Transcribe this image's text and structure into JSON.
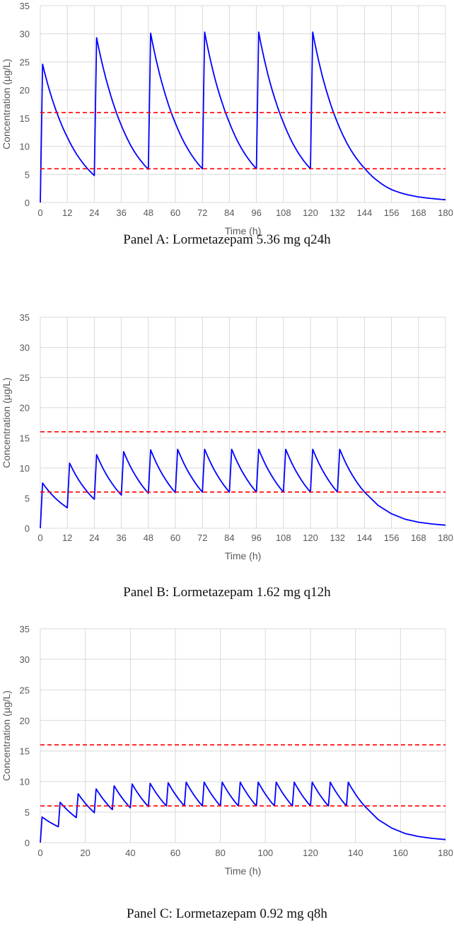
{
  "chart_data": [
    {
      "type": "line",
      "caption": "Panel A:  Lormetazepam 5.36 mg q24h",
      "xlabel": "Time (h)",
      "ylabel": "Concentration (µg/L)",
      "xlim": [
        0,
        180
      ],
      "ylim": [
        0,
        35
      ],
      "xticks": [
        0,
        12,
        24,
        36,
        48,
        60,
        72,
        84,
        96,
        108,
        120,
        132,
        144,
        156,
        168,
        180
      ],
      "yticks": [
        0,
        5,
        10,
        15,
        20,
        25,
        30,
        35
      ],
      "grid": true,
      "dose_interval_h": 24,
      "doses": 6,
      "series": [
        {
          "style": "solid",
          "color": "#0000ff",
          "x": [
            0,
            1,
            6,
            12,
            18,
            24,
            25,
            30,
            36,
            42,
            48,
            49,
            54,
            60,
            66,
            72,
            73,
            78,
            84,
            90,
            96,
            97,
            102,
            108,
            114,
            120,
            121,
            126,
            132,
            138,
            144,
            150,
            156,
            162,
            168,
            174,
            180
          ],
          "y": [
            0,
            24.6,
            17.5,
            11.6,
            7.5,
            4.8,
            29.3,
            20.8,
            13.7,
            8.9,
            5.9,
            30.1,
            21.3,
            14.1,
            9.2,
            6.0,
            30.3,
            21.4,
            14.2,
            9.2,
            6.0,
            30.3,
            21.4,
            14.2,
            9.2,
            6.0,
            30.3,
            21.4,
            14.2,
            9.3,
            6.1,
            3.8,
            2.3,
            1.5,
            1.0,
            0.7,
            0.5
          ]
        },
        {
          "style": "dashed",
          "color": "#ff0000",
          "x": [
            0,
            180
          ],
          "y": [
            16,
            16
          ]
        },
        {
          "style": "dashed",
          "color": "#ff0000",
          "x": [
            0,
            180
          ],
          "y": [
            6,
            6
          ]
        }
      ]
    },
    {
      "type": "line",
      "caption": "Panel B: Lormetazepam 1.62 mg q12h",
      "xlabel": "Time (h)",
      "ylabel": "Concentration (µg/L)",
      "xlim": [
        0,
        180
      ],
      "ylim": [
        0,
        35
      ],
      "xticks": [
        0,
        12,
        24,
        36,
        48,
        60,
        72,
        84,
        96,
        108,
        120,
        132,
        144,
        156,
        168,
        180
      ],
      "yticks": [
        0,
        5,
        10,
        15,
        20,
        25,
        30,
        35
      ],
      "grid": true,
      "dose_interval_h": 12,
      "doses": 12,
      "series": [
        {
          "style": "solid",
          "color": "#0000ff",
          "peaks": [
            7.5,
            10.8,
            12.2,
            12.7,
            13.0,
            13.1,
            13.1,
            13.1,
            13.1,
            13.1,
            13.1,
            13.1
          ],
          "troughs": [
            3.4,
            4.8,
            5.5,
            5.8,
            5.9,
            6.0,
            6.0,
            6.0,
            6.0,
            6.0,
            6.0,
            6.0
          ],
          "tail_x": [
            144,
            150,
            156,
            162,
            168,
            174,
            180
          ],
          "tail_y": [
            6.0,
            3.8,
            2.4,
            1.5,
            1.0,
            0.7,
            0.5
          ]
        },
        {
          "style": "dashed",
          "color": "#ff0000",
          "x": [
            0,
            180
          ],
          "y": [
            16,
            16
          ]
        },
        {
          "style": "dashed",
          "color": "#ff0000",
          "x": [
            0,
            180
          ],
          "y": [
            6,
            6
          ]
        }
      ]
    },
    {
      "type": "line",
      "caption": "Panel C: Lormetazepam 0.92 mg q8h",
      "xlabel": "Time (h)",
      "ylabel": "Concentration (µg/L)",
      "xlim": [
        0,
        180
      ],
      "ylim": [
        0,
        35
      ],
      "xticks": [
        0,
        20,
        40,
        60,
        80,
        100,
        120,
        140,
        160,
        180
      ],
      "yticks": [
        0,
        5,
        10,
        15,
        20,
        25,
        30,
        35
      ],
      "grid": true,
      "dose_interval_h": 8,
      "doses": 18,
      "series": [
        {
          "style": "solid",
          "color": "#0000ff",
          "peaks": [
            4.2,
            6.6,
            8.0,
            8.8,
            9.3,
            9.6,
            9.7,
            9.8,
            9.9,
            9.9,
            9.9,
            9.9,
            9.9,
            9.9,
            9.9,
            9.9,
            9.9,
            9.9
          ],
          "troughs": [
            2.6,
            4.1,
            4.9,
            5.4,
            5.7,
            5.9,
            6.0,
            6.0,
            6.0,
            6.0,
            6.0,
            6.0,
            6.0,
            6.0,
            6.0,
            6.0,
            6.0,
            6.0
          ],
          "tail_x": [
            144,
            150,
            156,
            162,
            168,
            174,
            180
          ],
          "tail_y": [
            6.0,
            3.8,
            2.4,
            1.5,
            1.0,
            0.7,
            0.5
          ]
        },
        {
          "style": "dashed",
          "color": "#ff0000",
          "x": [
            0,
            180
          ],
          "y": [
            16,
            16
          ]
        },
        {
          "style": "dashed",
          "color": "#ff0000",
          "x": [
            0,
            180
          ],
          "y": [
            6,
            6
          ]
        }
      ]
    }
  ]
}
